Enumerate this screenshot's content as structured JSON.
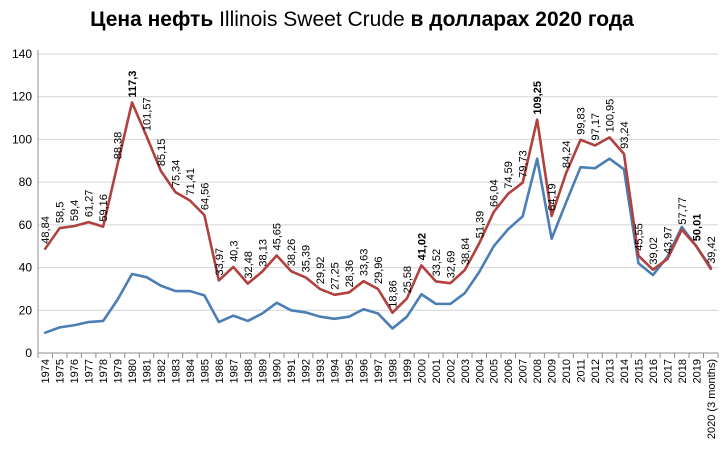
{
  "chart_data": {
    "type": "line",
    "title": {
      "part1": "Цена нефть ",
      "part2": "Illinois Sweet Crude",
      "part3": " в долларах 2020 года"
    },
    "xlabel": "",
    "ylabel": "",
    "ylim": [
      0,
      140
    ],
    "yticks": [
      0,
      20,
      40,
      60,
      80,
      100,
      120,
      140
    ],
    "grid": "horizontal",
    "legend": "none",
    "categories": [
      "1974",
      "1975",
      "1976",
      "1977",
      "1978",
      "1979",
      "1980",
      "1981",
      "1982",
      "1983",
      "1984",
      "1985",
      "1986",
      "1987",
      "1988",
      "1989",
      "1990",
      "1991",
      "1992",
      "1993",
      "1994",
      "1995",
      "1996",
      "1997",
      "1998",
      "1999",
      "2000",
      "2001",
      "2002",
      "2003",
      "2004",
      "2005",
      "2006",
      "2007",
      "2008",
      "2009",
      "2010",
      "2011",
      "2012",
      "2013",
      "2014",
      "2015",
      "2016",
      "2017",
      "2018",
      "2019",
      "2020 (3 months)"
    ],
    "series": [
      {
        "color": "#b0413e",
        "values": [
          48.84,
          58.5,
          59.4,
          61.27,
          59.16,
          88.38,
          117.3,
          101.57,
          85.15,
          75.34,
          71.41,
          64.56,
          33.97,
          40.3,
          32.48,
          38.13,
          45.65,
          38.26,
          35.39,
          29.92,
          27.25,
          28.36,
          33.63,
          29.96,
          18.86,
          25.58,
          41.02,
          33.52,
          32.69,
          38.84,
          51.39,
          66.04,
          74.59,
          79.73,
          109.25,
          64.19,
          84.24,
          99.83,
          97.17,
          100.95,
          93.24,
          45.55,
          39.02,
          43.97,
          57.77,
          50.01,
          39.42
        ],
        "labels": [
          "48,84",
          "58,5",
          "59,4",
          "61,27",
          "59,16",
          "88,38",
          "117,3",
          "101,57",
          "85,15",
          "75,34",
          "71,41",
          "64,56",
          "33,97",
          "40,3",
          "32,48",
          "38,13",
          "45,65",
          "38,26",
          "35,39",
          "29,92",
          "27,25",
          "28,36",
          "33,63",
          "29,96",
          "18,86",
          "25,58",
          "41,02",
          "33,52",
          "32,69",
          "38,84",
          "51,39",
          "66,04",
          "74,59",
          "79,73",
          "109,25",
          "64,19",
          "84,24",
          "99,83",
          "97,17",
          "100,95",
          "93,24",
          "45,55",
          "39,02",
          "43,97",
          "57,77",
          "50,01",
          "39,42"
        ],
        "bold_labels": [
          "117,3",
          "41,02",
          "109,25",
          "50,01"
        ]
      },
      {
        "color": "#4a7eb4",
        "values": [
          9.5,
          12,
          13,
          14.5,
          15,
          25,
          37,
          35.5,
          31.5,
          29,
          29,
          27,
          14.5,
          17.5,
          15,
          18.5,
          23.5,
          20,
          19,
          17,
          16,
          17,
          20.5,
          18.5,
          11.5,
          17,
          27.5,
          23,
          23,
          28,
          38,
          50,
          58,
          64,
          91,
          53.5,
          70.5,
          87,
          86.5,
          91,
          86,
          42,
          36.5,
          45,
          59,
          50,
          40
        ]
      }
    ]
  }
}
